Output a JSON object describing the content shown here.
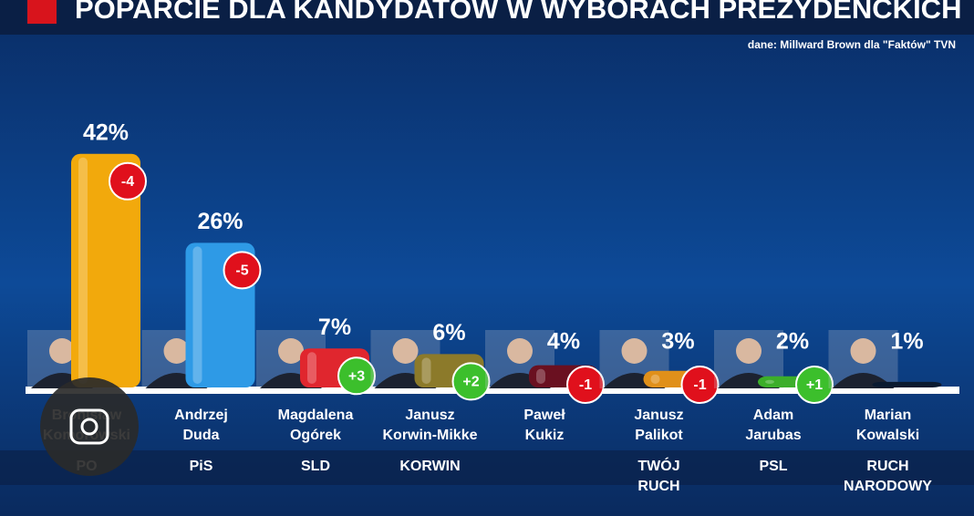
{
  "chart_data": {
    "type": "bar",
    "title": "POPARCIE DLA KANDYDATÓW W WYBORACH PREZYDENCKICH",
    "source": "dane:  Millward Brown dla \"Faktów\" TVN",
    "categories": [
      "Bronisław Komorowski",
      "Andrzej Duda",
      "Magdalena Ogórek",
      "Janusz Korwin-Mikke",
      "Paweł Kukiz",
      "Janusz Palikot",
      "Adam Jarubas",
      "Marian Kowalski"
    ],
    "parties": [
      "PO",
      "PiS",
      "SLD",
      "KORWIN",
      null,
      "TWÓJ RUCH",
      "PSL",
      "RUCH NARODOWY"
    ],
    "values": [
      42,
      26,
      7,
      6,
      4,
      3,
      2,
      1
    ],
    "value_labels": [
      "42%",
      "26%",
      "7%",
      "6%",
      "4%",
      "3%",
      "2%",
      "1%"
    ],
    "changes": [
      -4,
      -5,
      3,
      2,
      -1,
      -1,
      1,
      null
    ],
    "change_labels": [
      "-4",
      "-5",
      "+3",
      "+2",
      "-1",
      "-1",
      "+1",
      null
    ],
    "colors": [
      "#f2a90c",
      "#2e9ae6",
      "#e0262e",
      "#8c7a2a",
      "#6a1020",
      "#e0901a",
      "#3cae2a",
      "#0a1a30"
    ]
  }
}
